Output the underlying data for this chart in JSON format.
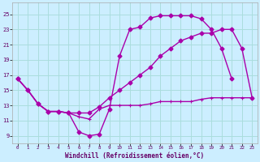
{
  "xlabel": "Windchill (Refroidissement éolien,°C)",
  "bg_color": "#cceeff",
  "line_color": "#aa00aa",
  "grid_color": "#aadddd",
  "x_ticks": [
    0,
    1,
    2,
    3,
    4,
    5,
    6,
    7,
    8,
    9,
    10,
    11,
    12,
    13,
    14,
    15,
    16,
    17,
    18,
    19,
    20,
    21,
    22,
    23
  ],
  "y_ticks": [
    9,
    11,
    13,
    15,
    17,
    19,
    21,
    23,
    25
  ],
  "ylim": [
    8.0,
    26.5
  ],
  "xlim": [
    -0.5,
    23.5
  ],
  "curve_upper_x": [
    0,
    1,
    2,
    3,
    4,
    5,
    6,
    7,
    8,
    9,
    10,
    11,
    12,
    13,
    14,
    15,
    16,
    17,
    18,
    19,
    20,
    21
  ],
  "curve_upper_y": [
    16.5,
    15.0,
    13.2,
    12.2,
    12.2,
    12.0,
    9.5,
    9.0,
    9.2,
    12.5,
    19.5,
    23.0,
    23.3,
    24.5,
    24.8,
    24.8,
    24.8,
    24.8,
    24.4,
    23.0,
    20.5,
    16.5
  ],
  "curve_mid_x": [
    0,
    1,
    2,
    3,
    4,
    5,
    6,
    7,
    8,
    9,
    10,
    11,
    12,
    13,
    14,
    15,
    16,
    17,
    18,
    19,
    20,
    21,
    22,
    23
  ],
  "curve_mid_y": [
    16.5,
    15.0,
    13.2,
    12.2,
    12.2,
    12.0,
    12.0,
    12.0,
    12.8,
    14.0,
    15.0,
    16.0,
    17.0,
    18.0,
    19.5,
    20.5,
    21.5,
    22.0,
    22.5,
    22.5,
    23.0,
    23.0,
    20.5,
    14.0
  ],
  "curve_low_x": [
    0,
    1,
    2,
    3,
    4,
    5,
    6,
    7,
    8,
    9,
    10,
    11,
    12,
    13,
    14,
    15,
    16,
    17,
    18,
    19,
    20,
    21,
    22,
    23
  ],
  "curve_low_y": [
    16.5,
    15.0,
    13.2,
    12.2,
    12.2,
    12.0,
    11.5,
    11.2,
    12.5,
    13.0,
    13.0,
    13.0,
    13.0,
    13.2,
    13.5,
    13.5,
    13.5,
    13.5,
    13.8,
    14.0,
    14.0,
    14.0,
    14.0,
    14.0
  ]
}
